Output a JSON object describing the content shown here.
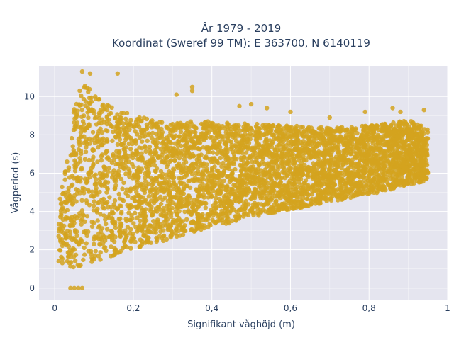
{
  "chart_data": {
    "type": "scatter",
    "title_line1": "År 1979 - 2019",
    "title_line2": "Koordinat (Sweref 99 TM): E 363700, N 6140119",
    "xlabel": "Signifikant våghöjd (m)",
    "ylabel": "Vågperiod (s)",
    "xlim": [
      -0.04,
      1.0
    ],
    "ylim": [
      -0.6,
      11.6
    ],
    "x_ticks": [
      0,
      0.2,
      0.4,
      0.6,
      0.8,
      1
    ],
    "x_tick_labels": [
      "0",
      "0,2",
      "0,4",
      "0,6",
      "0,8",
      "1"
    ],
    "y_ticks": [
      0,
      2,
      4,
      6,
      8,
      10
    ],
    "y_tick_labels": [
      "0",
      "2",
      "4",
      "6",
      "8",
      "10"
    ],
    "grid": true,
    "legend": "none",
    "marker_color": "#d4a31f",
    "plot_bg": "#e5e5ef",
    "series": [
      {
        "x": [
          0.01,
          0.02,
          0.03,
          0.04,
          0.05,
          0.06,
          0.07,
          0.08,
          0.09,
          0.1,
          0.12,
          0.15,
          0.2,
          0.25,
          0.3,
          0.35,
          0.4,
          0.45,
          0.5,
          0.55,
          0.6,
          0.65,
          0.7,
          0.75,
          0.8,
          0.85,
          0.9,
          0.95
        ],
        "y_min": [
          1.8,
          1.2,
          1.0,
          1.0,
          1.1,
          1.1,
          1.2,
          1.2,
          1.3,
          1.4,
          1.5,
          1.7,
          2.0,
          2.3,
          2.6,
          2.9,
          3.2,
          3.4,
          3.7,
          3.9,
          4.1,
          4.3,
          4.5,
          4.7,
          4.9,
          5.1,
          5.4,
          5.6
        ],
        "y_max": [
          4.3,
          5.5,
          6.8,
          8.3,
          9.5,
          10.2,
          10.5,
          10.6,
          10.5,
          10.3,
          10.0,
          9.5,
          9.0,
          8.8,
          8.6,
          8.7,
          8.7,
          8.6,
          8.6,
          8.5,
          8.5,
          8.4,
          8.4,
          8.4,
          8.5,
          8.6,
          8.8,
          8.3
        ]
      }
    ],
    "outliers": [
      {
        "x": 0.04,
        "y": 0
      },
      {
        "x": 0.05,
        "y": 0
      },
      {
        "x": 0.06,
        "y": 0
      },
      {
        "x": 0.07,
        "y": 0
      },
      {
        "x": 0.07,
        "y": 11.3
      },
      {
        "x": 0.09,
        "y": 11.2
      },
      {
        "x": 0.16,
        "y": 11.2
      },
      {
        "x": 0.35,
        "y": 10.5
      },
      {
        "x": 0.35,
        "y": 10.3
      },
      {
        "x": 0.31,
        "y": 10.1
      },
      {
        "x": 0.5,
        "y": 9.6
      },
      {
        "x": 0.47,
        "y": 9.5
      },
      {
        "x": 0.54,
        "y": 9.4
      },
      {
        "x": 0.6,
        "y": 9.2
      },
      {
        "x": 0.79,
        "y": 9.2
      },
      {
        "x": 0.86,
        "y": 9.4
      },
      {
        "x": 0.88,
        "y": 9.2
      },
      {
        "x": 0.94,
        "y": 9.3
      },
      {
        "x": 0.7,
        "y": 8.9
      },
      {
        "x": 0.02,
        "y": 4.2
      },
      {
        "x": 0.01,
        "y": 1.4
      },
      {
        "x": 0.01,
        "y": 2.7
      }
    ]
  }
}
